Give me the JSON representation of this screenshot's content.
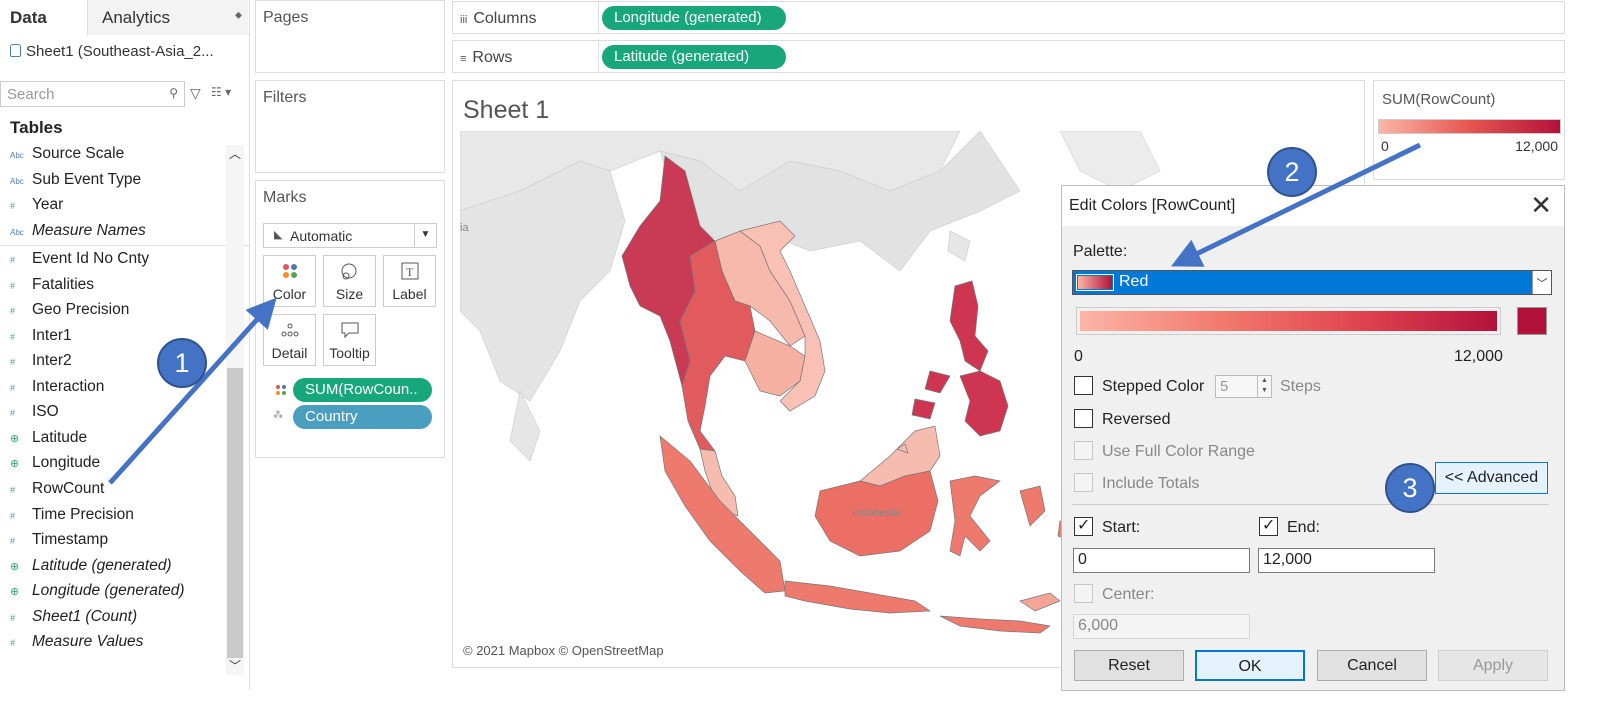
{
  "left_pane": {
    "tab_data": "Data",
    "tab_analytics": "Analytics",
    "datasource": "Sheet1 (Southeast-Asia_2...",
    "search_placeholder": "Search",
    "tables_heading": "Tables",
    "fields": [
      {
        "name": "Source Scale",
        "type": "abc",
        "italic": false
      },
      {
        "name": "Sub Event Type",
        "type": "abc",
        "italic": false
      },
      {
        "name": "Year",
        "type": "num",
        "italic": false
      },
      {
        "name": "Measure Names",
        "type": "abc",
        "italic": true
      },
      {
        "name": "Event Id No Cnty",
        "type": "num",
        "italic": false
      },
      {
        "name": "Fatalities",
        "type": "num",
        "italic": false
      },
      {
        "name": "Geo Precision",
        "type": "num",
        "italic": false
      },
      {
        "name": "Inter1",
        "type": "num",
        "italic": false
      },
      {
        "name": "Inter2",
        "type": "num",
        "italic": false
      },
      {
        "name": "Interaction",
        "type": "num",
        "italic": false
      },
      {
        "name": "ISO",
        "type": "num",
        "italic": false
      },
      {
        "name": "Latitude",
        "type": "geo",
        "italic": false
      },
      {
        "name": "Longitude",
        "type": "geo",
        "italic": false
      },
      {
        "name": "RowCount",
        "type": "num",
        "italic": false
      },
      {
        "name": "Time Precision",
        "type": "num",
        "italic": false
      },
      {
        "name": "Timestamp",
        "type": "num",
        "italic": false
      },
      {
        "name": "Latitude (generated)",
        "type": "geo",
        "italic": true
      },
      {
        "name": "Longitude (generated)",
        "type": "geo",
        "italic": true
      },
      {
        "name": "Sheet1 (Count)",
        "type": "num",
        "italic": true
      },
      {
        "name": "Measure Values",
        "type": "num",
        "italic": true
      }
    ]
  },
  "cards": {
    "pages": "Pages",
    "filters": "Filters",
    "marks": "Marks",
    "mark_type": "Automatic",
    "mark_buttons": [
      "Color",
      "Size",
      "Label",
      "Detail",
      "Tooltip"
    ],
    "mark_pills": [
      "SUM(RowCoun..",
      "Country"
    ]
  },
  "shelves": {
    "columns_label": "Columns",
    "columns_pill": "Longitude (generated)",
    "rows_label": "Rows",
    "rows_pill": "Latitude (generated)"
  },
  "viz": {
    "sheet_title": "Sheet 1",
    "credit": "© 2021 Mapbox © OpenStreetMap",
    "map_label_indonesia": "Indonesia",
    "map_label_edge": "ia"
  },
  "legend": {
    "title": "SUM(RowCount)",
    "min": "0",
    "max": "12,000"
  },
  "dialog": {
    "title": "Edit Colors [RowCount]",
    "palette_label": "Palette:",
    "palette_value": "Red",
    "range_min": "0",
    "range_max": "12,000",
    "stepped_color": "Stepped Color",
    "steps_value": "5",
    "steps_label": "Steps",
    "reversed": "Reversed",
    "use_full_range": "Use Full Color Range",
    "include_totals": "Include Totals",
    "advanced_button": "<< Advanced",
    "start_label": "Start:",
    "end_label": "End:",
    "start_value": "0",
    "end_value": "12,000",
    "center_label": "Center:",
    "center_value": "6,000",
    "buttons": {
      "reset": "Reset",
      "ok": "OK",
      "cancel": "Cancel",
      "apply": "Apply"
    }
  },
  "annotations": {
    "c1": "1",
    "c2": "2",
    "c3": "3"
  },
  "colors": {
    "accent": "#0078d7",
    "pill_green": "#17a77b",
    "pill_blue": "#4a9ec0",
    "palette_light": "#fcb5a7",
    "palette_dark": "#b2123a",
    "callout": "#4472c4"
  }
}
